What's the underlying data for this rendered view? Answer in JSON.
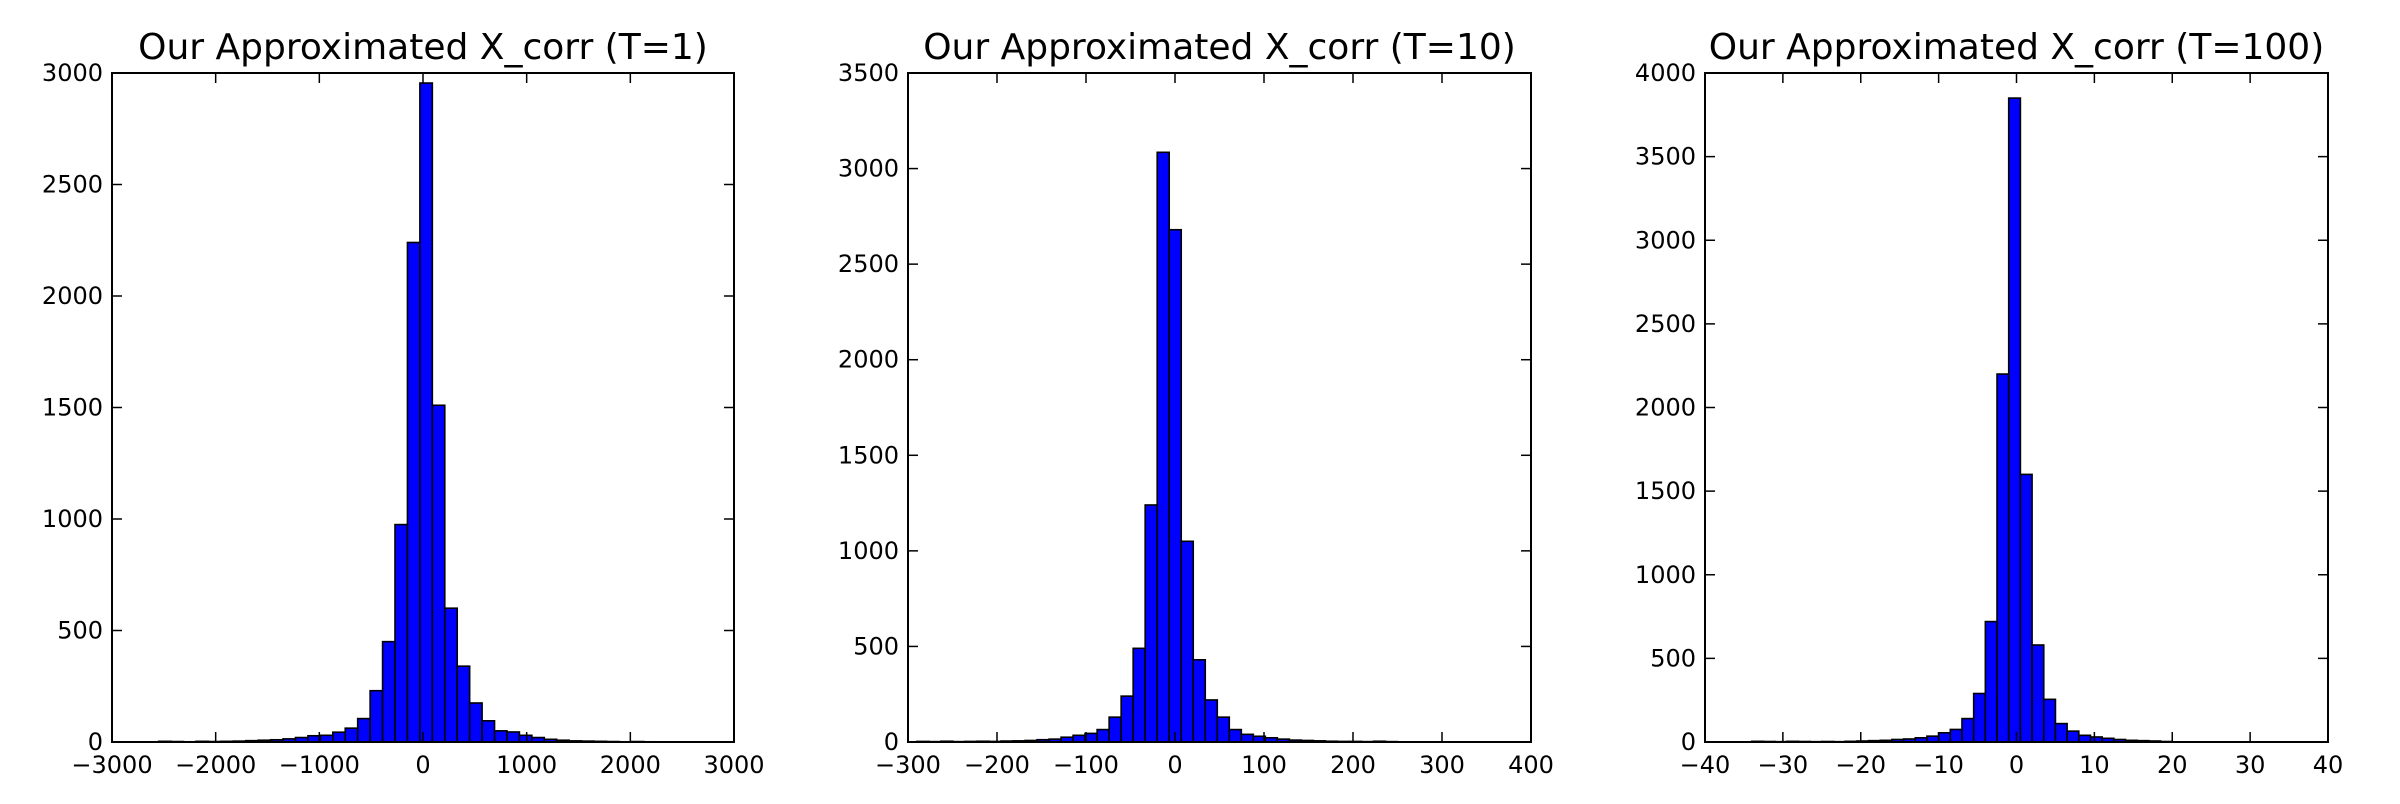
{
  "figure": {
    "background": "#ffffff",
    "bar_color": "#0000ff",
    "edge_color": "#000000"
  },
  "chart_data": [
    {
      "type": "bar",
      "title": "Our Approximated X_corr (T=1)",
      "xlabel": "",
      "ylabel": "",
      "xlim": [
        -3000,
        3000
      ],
      "ylim": [
        0,
        3000
      ],
      "xticks": [
        -3000,
        -2000,
        -1000,
        0,
        1000,
        2000,
        3000
      ],
      "xtick_labels": [
        "−3000",
        "−2000",
        "−1000",
        "0",
        "1000",
        "2000",
        "3000"
      ],
      "yticks": [
        0,
        500,
        1000,
        1500,
        2000,
        2500,
        3000
      ],
      "ytick_labels": [
        "0",
        "500",
        "1000",
        "1500",
        "2000",
        "2500",
        "3000"
      ],
      "grid": false,
      "bin_edges": [
        -2550,
        -2430,
        -2310,
        -2190,
        -2070,
        -1950,
        -1830,
        -1710,
        -1590,
        -1470,
        -1350,
        -1230,
        -1110,
        -990,
        -870,
        -750,
        -630,
        -510,
        -390,
        -270,
        -150,
        -30,
        90,
        210,
        330,
        450,
        570,
        690,
        810,
        930,
        1050,
        1170,
        1290,
        1410,
        1530,
        1650,
        1770,
        1890,
        2010,
        2130,
        2250
      ],
      "values": [
        3,
        2,
        1,
        3,
        2,
        3,
        4,
        6,
        8,
        10,
        14,
        20,
        28,
        30,
        44,
        62,
        105,
        230,
        450,
        975,
        2240,
        2955,
        1510,
        600,
        340,
        175,
        95,
        50,
        45,
        30,
        20,
        12,
        8,
        5,
        4,
        3,
        2,
        1,
        2,
        1
      ]
    },
    {
      "type": "bar",
      "title": "Our Approximated X_corr (T=10)",
      "xlabel": "",
      "ylabel": "",
      "xlim": [
        -300,
        400
      ],
      "ylim": [
        0,
        3500
      ],
      "xticks": [
        -300,
        -200,
        -100,
        0,
        100,
        200,
        300,
        400
      ],
      "xtick_labels": [
        "−300",
        "−200",
        "−100",
        "0",
        "100",
        "200",
        "300",
        "400"
      ],
      "yticks": [
        0,
        500,
        1000,
        1500,
        2000,
        2500,
        3000,
        3500
      ],
      "ytick_labels": [
        "0",
        "500",
        "1000",
        "1500",
        "2000",
        "2500",
        "3000",
        "3500"
      ],
      "grid": false,
      "bin_edges": [
        -290,
        -276.5,
        -263,
        -249.5,
        -236,
        -222.5,
        -209,
        -195.5,
        -182,
        -168.5,
        -155,
        -141.5,
        -128,
        -114.5,
        -101,
        -87.5,
        -74,
        -60.5,
        -47,
        -33.5,
        -20,
        -6.5,
        7,
        20.5,
        34,
        47.5,
        61,
        74.5,
        88,
        101.5,
        115,
        128.5,
        142,
        155.5,
        169,
        182.5,
        196,
        209.5,
        223,
        236.5,
        250
      ],
      "values": [
        3,
        2,
        4,
        2,
        3,
        4,
        3,
        5,
        6,
        8,
        12,
        15,
        25,
        35,
        45,
        65,
        130,
        240,
        490,
        1240,
        3085,
        2680,
        1050,
        430,
        220,
        130,
        65,
        40,
        30,
        22,
        15,
        10,
        8,
        6,
        4,
        3,
        3,
        2,
        4,
        2
      ]
    },
    {
      "type": "bar",
      "title": "Our Approximated X_corr (T=100)",
      "xlabel": "",
      "ylabel": "",
      "xlim": [
        -40,
        40
      ],
      "ylim": [
        0,
        4000
      ],
      "xticks": [
        -40,
        -30,
        -20,
        -10,
        0,
        10,
        20,
        30,
        40
      ],
      "xtick_labels": [
        "−40",
        "−30",
        "−20",
        "−10",
        "0",
        "10",
        "20",
        "30",
        "40"
      ],
      "yticks": [
        0,
        500,
        1000,
        1500,
        2000,
        2500,
        3000,
        3500,
        4000
      ],
      "ytick_labels": [
        "0",
        "500",
        "1000",
        "1500",
        "2000",
        "2500",
        "3000",
        "3500",
        "4000"
      ],
      "grid": false,
      "bin_edges": [
        -34,
        -32.5,
        -31,
        -29.5,
        -28,
        -26.5,
        -25,
        -23.5,
        -22,
        -20.5,
        -19,
        -17.5,
        -16,
        -14.5,
        -13,
        -11.5,
        -10,
        -8.5,
        -7,
        -5.5,
        -4,
        -2.5,
        -1,
        0.5,
        2,
        3.5,
        5,
        6.5,
        8,
        9.5,
        11,
        12.5,
        14,
        15.5,
        17,
        18.5,
        20
      ],
      "values": [
        4,
        3,
        2,
        4,
        3,
        2,
        3,
        2,
        4,
        6,
        8,
        10,
        15,
        18,
        25,
        35,
        55,
        75,
        140,
        290,
        720,
        2200,
        3850,
        1600,
        580,
        255,
        110,
        65,
        40,
        30,
        22,
        15,
        10,
        8,
        6,
        3
      ]
    }
  ]
}
